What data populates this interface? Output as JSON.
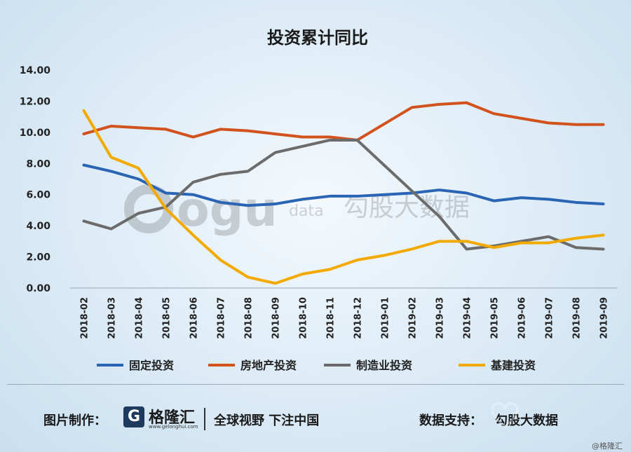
{
  "chart_data": {
    "type": "line",
    "title": "投资累计同比",
    "categories": [
      "2018-02",
      "2018-03",
      "2018-04",
      "2018-05",
      "2018-06",
      "2018-07",
      "2018-08",
      "2018-09",
      "2018-10",
      "2018-11",
      "2018-12",
      "2019-01",
      "2019-02",
      "2019-03",
      "2019-04",
      "2019-05",
      "2019-06",
      "2019-07",
      "2019-08",
      "2019-09"
    ],
    "ylim": [
      0,
      14
    ],
    "yticks": [
      "0.00",
      "2.00",
      "4.00",
      "6.00",
      "8.00",
      "10.00",
      "12.00",
      "14.00"
    ],
    "grid": false,
    "legend": "bottom",
    "series": [
      {
        "name": "固定投资",
        "color": "#2a64b4",
        "values": [
          7.9,
          7.5,
          7.0,
          6.1,
          6.0,
          5.5,
          5.3,
          5.4,
          5.7,
          5.9,
          5.9,
          6.0,
          6.1,
          6.3,
          6.1,
          5.6,
          5.8,
          5.7,
          5.5,
          5.4
        ]
      },
      {
        "name": "房地产投资",
        "color": "#d2521e",
        "values": [
          9.9,
          10.4,
          10.3,
          10.2,
          9.7,
          10.2,
          10.1,
          9.9,
          9.7,
          9.7,
          9.5,
          null,
          11.6,
          11.8,
          11.9,
          11.2,
          10.9,
          10.6,
          10.5,
          10.5
        ]
      },
      {
        "name": "制造业投资",
        "color": "#6b6b6b",
        "values": [
          4.3,
          3.8,
          4.8,
          5.2,
          6.8,
          7.3,
          7.5,
          8.7,
          9.1,
          9.5,
          9.5,
          null,
          null,
          4.6,
          2.5,
          2.7,
          3.0,
          3.3,
          2.6,
          2.5
        ]
      },
      {
        "name": "基建投资",
        "color": "#f2a900",
        "values": [
          11.4,
          8.4,
          7.7,
          5.1,
          3.4,
          1.8,
          0.7,
          0.3,
          0.9,
          1.2,
          1.8,
          2.1,
          2.5,
          3.0,
          3.0,
          2.6,
          2.9,
          2.9,
          3.2,
          3.4
        ]
      }
    ]
  },
  "watermark": {
    "latin": "ogu",
    "suffix": "data",
    "cn": "勾股大数据"
  },
  "footer": {
    "credit_label": "图片制作：",
    "brand_icon": "G",
    "brand_name": "格隆汇",
    "brand_url": "www.gelonghui.com",
    "slogan": "全球视野 下注中国",
    "source_label": "数据支持：",
    "source_value": "勾股大数据",
    "copyright": "@格隆汇"
  }
}
